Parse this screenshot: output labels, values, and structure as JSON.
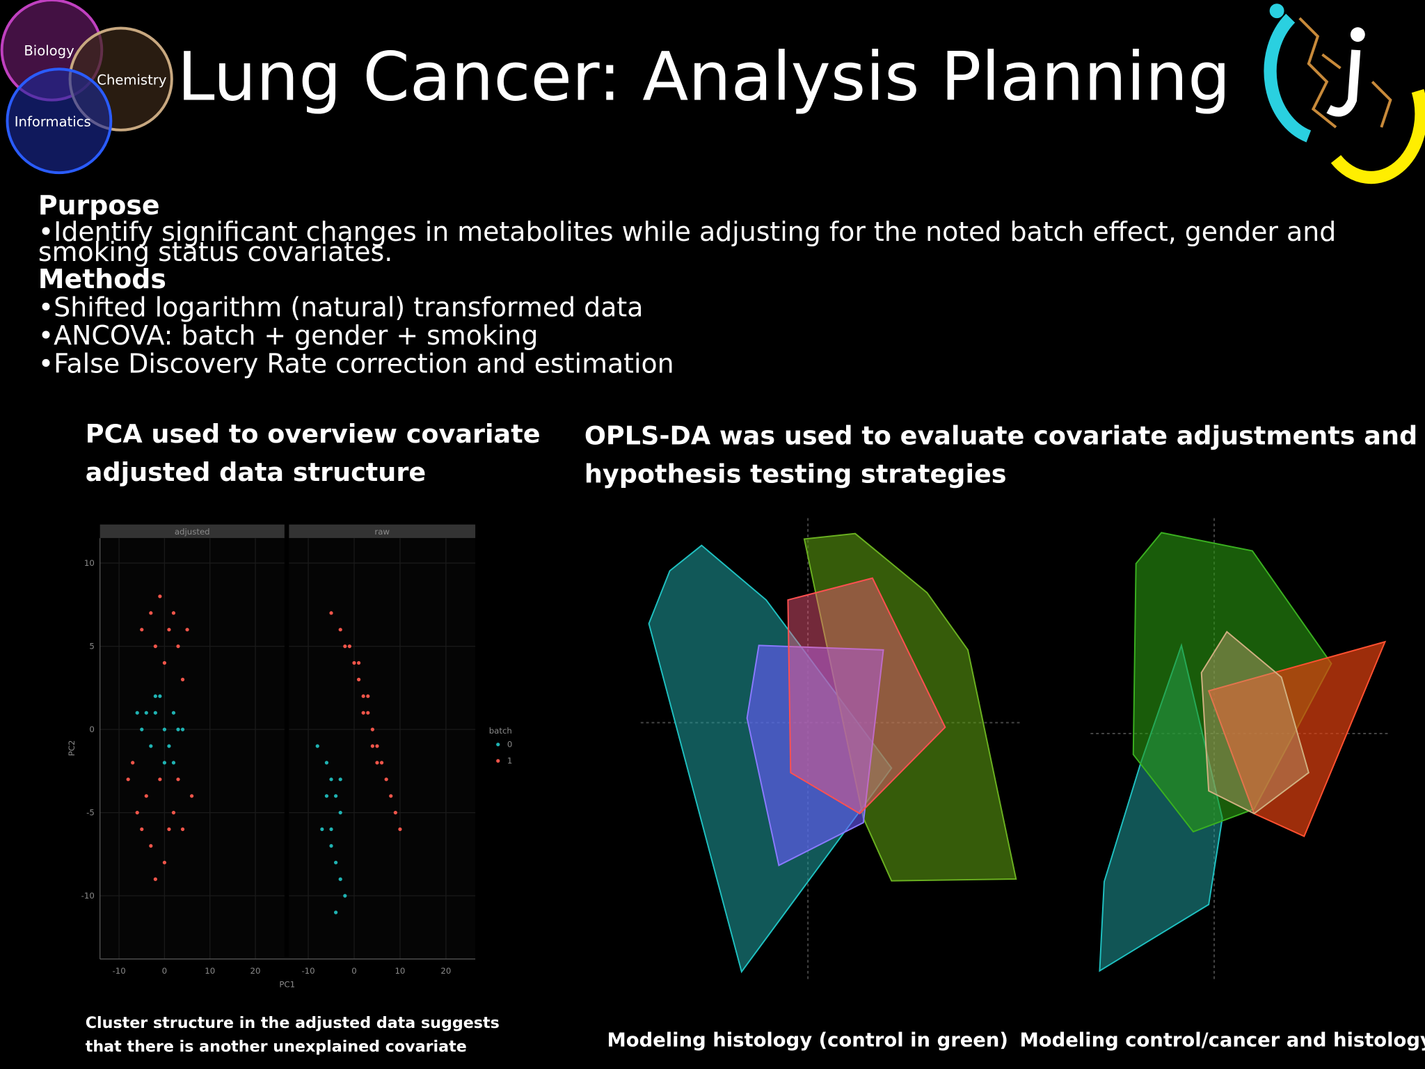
{
  "header": {
    "title": "Lung Cancer: Analysis Planning",
    "venn": [
      "Biology",
      "Chemistry",
      "Informatics"
    ]
  },
  "purpose": {
    "heading": "Purpose",
    "lines": [
      "•Identify significant changes in metabolites while adjusting for the noted batch effect, gender and",
      "smoking status covariates."
    ]
  },
  "methods": {
    "heading": "Methods",
    "items": [
      "•Shifted logarithm (natural) transformed data",
      "•ANCOVA: batch + gender + smoking",
      "•False Discovery Rate correction and estimation"
    ]
  },
  "pca": {
    "heading": [
      "PCA used to overview covariate",
      "adjusted data structure"
    ],
    "caption": [
      "Cluster structure in the adjusted data suggests",
      "that there is another unexplained covariate"
    ]
  },
  "opls": {
    "heading": [
      "OPLS-DA was used to evaluate covariate adjustments and",
      "hypothesis testing strategies"
    ],
    "captions": [
      "Modeling histology (control in green)",
      "Modeling control/cancer and histology"
    ]
  },
  "chart_data": {
    "type": "scatter",
    "xlabel": "PC1",
    "ylabel": "PC2",
    "legend_title": "batch",
    "xlim": [
      -14.2,
      26.4
    ],
    "ylim": [
      -13.8,
      11.5
    ],
    "xticks": [
      -10,
      0,
      10,
      20
    ],
    "yticks": [
      -10,
      -5,
      0,
      5,
      10
    ],
    "series": [
      {
        "name": "0",
        "color": "#1fb3b3"
      },
      {
        "name": "1",
        "color": "#f0554a"
      }
    ],
    "panels": [
      {
        "title": "adjusted",
        "series": [
          {
            "x": [
              -4,
              -2,
              0,
              2,
              -3,
              1,
              -1,
              3,
              -5,
              0,
              -2,
              2,
              4,
              -6
            ],
            "y": [
              1,
              2,
              0,
              1,
              -1,
              -1,
              2,
              0,
              0,
              -2,
              1,
              -2,
              0,
              1
            ]
          },
          {
            "x": [
              -3,
              -1,
              1,
              3,
              -5,
              0,
              2,
              4,
              -2,
              5,
              -7,
              -4,
              -1,
              2,
              4,
              -6,
              -3,
              0,
              3,
              1,
              -2,
              6,
              -8,
              -5
            ],
            "y": [
              7,
              8,
              6,
              5,
              6,
              4,
              7,
              3,
              5,
              6,
              -2,
              -4,
              -3,
              -5,
              -6,
              -5,
              -7,
              -8,
              -3,
              -6,
              -9,
              -4,
              -3,
              -6
            ]
          }
        ]
      },
      {
        "title": "raw",
        "series": [
          {
            "x": [
              -8,
              -6,
              -5,
              -4,
              -3,
              -7,
              -5,
              -4,
              -3,
              -2,
              -6,
              -4,
              -3,
              -5
            ],
            "y": [
              -1,
              -2,
              -3,
              -4,
              -5,
              -6,
              -7,
              -8,
              -9,
              -10,
              -4,
              -11,
              -3,
              -6
            ]
          },
          {
            "x": [
              -5,
              -3,
              -2,
              0,
              1,
              2,
              3,
              4,
              5,
              6,
              7,
              8,
              -1,
              1,
              3,
              5,
              9,
              10,
              2,
              4
            ],
            "y": [
              7,
              6,
              5,
              4,
              3,
              2,
              1,
              0,
              -1,
              -2,
              -3,
              -4,
              5,
              4,
              2,
              -2,
              -5,
              -6,
              1,
              -1
            ]
          }
        ]
      }
    ]
  }
}
